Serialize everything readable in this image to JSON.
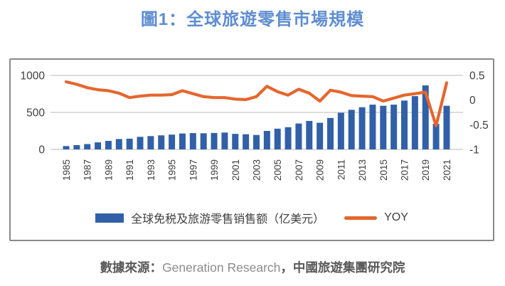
{
  "title": "圖1：全球旅遊零售市場規模",
  "chart_data": {
    "type": "bar+line combo",
    "categories": [
      1985,
      1986,
      1987,
      1988,
      1989,
      1990,
      1991,
      1992,
      1993,
      1994,
      1995,
      1996,
      1997,
      1998,
      1999,
      2000,
      2001,
      2002,
      2003,
      2004,
      2005,
      2006,
      2007,
      2008,
      2009,
      2010,
      2011,
      2012,
      2013,
      2014,
      2015,
      2016,
      2017,
      2018,
      2019,
      2020,
      2021
    ],
    "series": [
      {
        "name": "全球免税及旅游零售销售额（亿美元）",
        "type": "bar",
        "axis": "left",
        "color": "#3160A8",
        "values": [
          45,
          58,
          72,
          95,
          115,
          140,
          145,
          170,
          180,
          190,
          200,
          215,
          220,
          218,
          222,
          228,
          210,
          205,
          195,
          250,
          280,
          300,
          350,
          385,
          360,
          425,
          495,
          535,
          570,
          605,
          590,
          605,
          660,
          720,
          865,
          345,
          590
        ]
      },
      {
        "name": "YOY",
        "type": "line",
        "axis": "right",
        "color": "#E5662D",
        "values": [
          0.37,
          0.32,
          0.25,
          0.21,
          0.19,
          0.14,
          0.05,
          0.08,
          0.1,
          0.1,
          0.11,
          0.19,
          0.13,
          0.07,
          0.05,
          0.05,
          0.02,
          0.01,
          0.07,
          0.28,
          0.17,
          0.1,
          0.22,
          0.14,
          -0.02,
          0.2,
          0.16,
          0.09,
          0.08,
          0.07,
          -0.02,
          0.04,
          0.1,
          0.13,
          0.16,
          -0.52,
          0.35
        ]
      }
    ],
    "left_axis": {
      "min": 0,
      "max": 1000,
      "ticks": [
        1000,
        500,
        0
      ]
    },
    "right_axis": {
      "min": -1,
      "max": 0.5,
      "ticks": [
        0.5,
        0,
        -0.5,
        -1
      ]
    },
    "x_tick_years": [
      1985,
      1987,
      1989,
      1991,
      1993,
      1995,
      1997,
      1999,
      2001,
      2003,
      2005,
      2007,
      2009,
      2011,
      2013,
      2015,
      2017,
      2019,
      2021
    ],
    "grid": true,
    "legend_position": "bottom"
  },
  "legend": {
    "bar_label": "全球免税及旅游零售销售额（亿美元）",
    "line_label": "YOY"
  },
  "source": {
    "prefix": "數據來源：",
    "agency": "Generation Research",
    "suffix": "，中國旅遊集團研究院"
  },
  "colors": {
    "title": "#5E8DD1",
    "bar": "#3160A8",
    "line": "#E5662D",
    "grid": "#C6C6C6",
    "axis_text": "#3F3F3F",
    "frame_border": "#8A8A8A",
    "source_dark": "#595959",
    "source_light": "#8C8C8C"
  }
}
